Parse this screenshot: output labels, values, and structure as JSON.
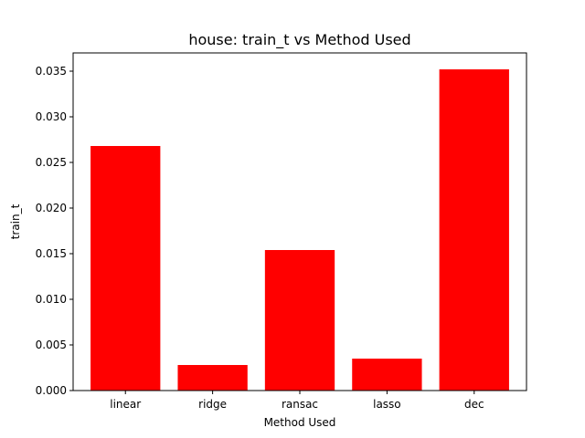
{
  "chart_data": {
    "type": "bar",
    "title": "house: train_t vs Method Used",
    "xlabel": "Method Used",
    "ylabel": "train_t",
    "categories": [
      "linear",
      "ridge",
      "ransac",
      "lasso",
      "dec"
    ],
    "values": [
      0.0268,
      0.0028,
      0.0154,
      0.0035,
      0.0352
    ],
    "ylim": [
      0,
      0.037
    ],
    "yticks": [
      0.0,
      0.005,
      0.01,
      0.015,
      0.02,
      0.025,
      0.03,
      0.035
    ],
    "ytick_labels": [
      "0.000",
      "0.005",
      "0.010",
      "0.015",
      "0.020",
      "0.025",
      "0.030",
      "0.035"
    ],
    "bar_color": "#ff0000",
    "grid": false,
    "legend": "none"
  }
}
